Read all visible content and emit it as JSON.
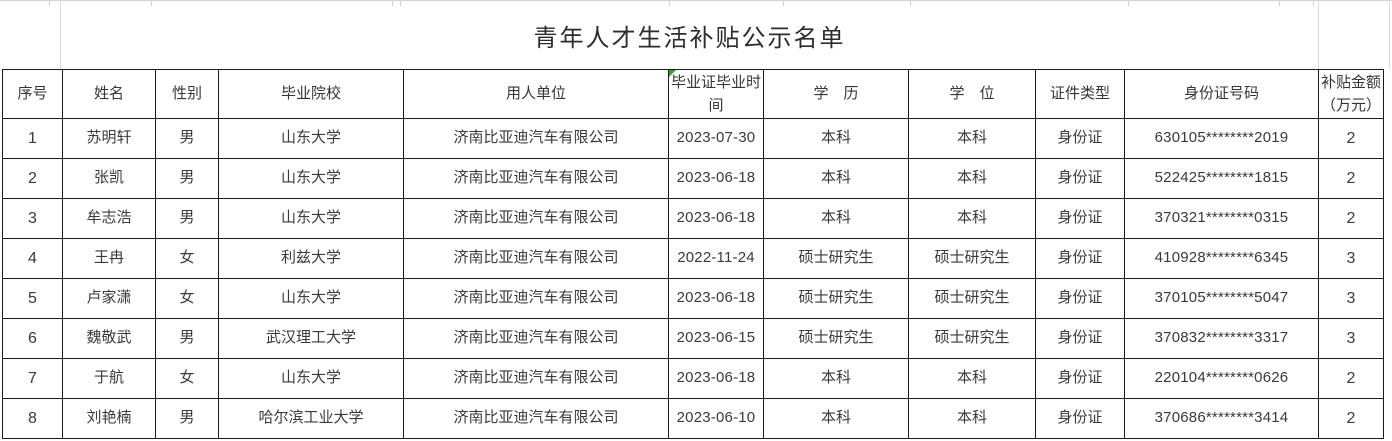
{
  "title": "青年人才生活补贴公示名单",
  "table": {
    "columns": [
      "序号",
      "姓名",
      "性别",
      "毕业院校",
      "用人单位",
      "毕业证毕业时间",
      "学　历",
      "学　位",
      "证件类型",
      "身份证号码",
      "补贴金额（万元）"
    ],
    "rows": [
      [
        "1",
        "苏明轩",
        "男",
        "山东大学",
        "济南比亚迪汽车有限公司",
        "2023-07-30",
        "本科",
        "本科",
        "身份证",
        "630105********2019",
        "2"
      ],
      [
        "2",
        "张凯",
        "男",
        "山东大学",
        "济南比亚迪汽车有限公司",
        "2023-06-18",
        "本科",
        "本科",
        "身份证",
        "522425********1815",
        "2"
      ],
      [
        "3",
        "牟志浩",
        "男",
        "山东大学",
        "济南比亚迪汽车有限公司",
        "2023-06-18",
        "本科",
        "本科",
        "身份证",
        "370321********0315",
        "2"
      ],
      [
        "4",
        "王冉",
        "女",
        "利兹大学",
        "济南比亚迪汽车有限公司",
        "2022-11-24",
        "硕士研究生",
        "硕士研究生",
        "身份证",
        "410928********6345",
        "3"
      ],
      [
        "5",
        "卢家潇",
        "女",
        "山东大学",
        "济南比亚迪汽车有限公司",
        "2023-06-18",
        "硕士研究生",
        "硕士研究生",
        "身份证",
        "370105********5047",
        "3"
      ],
      [
        "6",
        "魏敬武",
        "男",
        "武汉理工大学",
        "济南比亚迪汽车有限公司",
        "2023-06-15",
        "硕士研究生",
        "硕士研究生",
        "身份证",
        "370832********3317",
        "3"
      ],
      [
        "7",
        "于航",
        "女",
        "山东大学",
        "济南比亚迪汽车有限公司",
        "2023-06-18",
        "本科",
        "本科",
        "身份证",
        "220104********0626",
        "2"
      ],
      [
        "8",
        "刘艳楠",
        "男",
        "哈尔滨工业大学",
        "济南比亚迪汽车有限公司",
        "2023-06-10",
        "本科",
        "本科",
        "身份证",
        "370686********3414",
        "2"
      ]
    ],
    "error_indicator_column": "毕业证毕业时间",
    "error_indicator_color": "#38a038",
    "grid_line_color": "#d4d4d4",
    "border_color": "#1a1a1a"
  }
}
